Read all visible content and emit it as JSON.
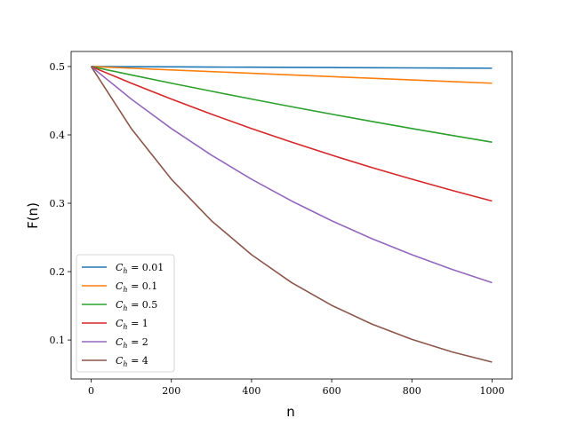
{
  "chart_data": {
    "type": "line",
    "xlabel": "n",
    "ylabel": "F(n)",
    "xlim": [
      -50,
      1050
    ],
    "ylim": [
      0.043,
      0.522
    ],
    "xticks": [
      0,
      200,
      400,
      600,
      800,
      1000
    ],
    "yticks": [
      0.1,
      0.2,
      0.3,
      0.4,
      0.5
    ],
    "xtick_labels": [
      "0",
      "200",
      "400",
      "600",
      "800",
      "1000"
    ],
    "ytick_labels": [
      "0.1",
      "0.2",
      "0.3",
      "0.4",
      "0.5"
    ],
    "grid": false,
    "legend_position": "lower-left",
    "x": [
      0,
      100,
      200,
      300,
      400,
      500,
      600,
      700,
      800,
      900,
      1000
    ],
    "series": [
      {
        "name": "C_h = 0.01",
        "label_value": "0.01",
        "color": "#1f77b4",
        "values": [
          0.5,
          0.4997,
          0.4995,
          0.4992,
          0.499,
          0.4987,
          0.4985,
          0.4982,
          0.498,
          0.4977,
          0.4975
        ]
      },
      {
        "name": "C_h = 0.1",
        "label_value": "0.1",
        "color": "#ff7f0e",
        "values": [
          0.5,
          0.4975,
          0.495,
          0.4926,
          0.4901,
          0.4877,
          0.4852,
          0.4828,
          0.4804,
          0.478,
          0.4756
        ]
      },
      {
        "name": "C_h = 0.5",
        "label_value": "0.5",
        "color": "#2ca02c",
        "values": [
          0.5,
          0.4877,
          0.4756,
          0.4639,
          0.4524,
          0.4412,
          0.4303,
          0.4197,
          0.4093,
          0.3992,
          0.3894
        ]
      },
      {
        "name": "C_h = 1",
        "label_value": "1",
        "color": "#d62728",
        "values": [
          0.5,
          0.4756,
          0.4524,
          0.4303,
          0.4093,
          0.3894,
          0.3704,
          0.3523,
          0.3352,
          0.3188,
          0.3033
        ]
      },
      {
        "name": "C_h = 2",
        "label_value": "2",
        "color": "#9467bd",
        "values": [
          0.5,
          0.4524,
          0.4093,
          0.3704,
          0.3352,
          0.3033,
          0.2744,
          0.2483,
          0.2247,
          0.2033,
          0.1839
        ]
      },
      {
        "name": "C_h = 4",
        "label_value": "4",
        "color": "#8c564b",
        "values": [
          0.5,
          0.4093,
          0.3352,
          0.2744,
          0.2247,
          0.1839,
          0.1506,
          0.1233,
          0.1009,
          0.0826,
          0.0677
        ]
      }
    ]
  }
}
